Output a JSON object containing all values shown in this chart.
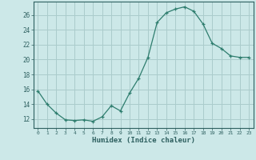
{
  "x": [
    0,
    1,
    2,
    3,
    4,
    5,
    6,
    7,
    8,
    9,
    10,
    11,
    12,
    13,
    14,
    15,
    16,
    17,
    18,
    19,
    20,
    21,
    22,
    23
  ],
  "y": [
    15.8,
    14.0,
    12.8,
    11.9,
    11.8,
    11.9,
    11.7,
    12.3,
    13.8,
    13.1,
    15.5,
    17.5,
    20.3,
    25.0,
    26.3,
    26.8,
    27.1,
    26.5,
    24.8,
    22.2,
    21.5,
    20.5,
    20.3,
    20.3
  ],
  "line_color": "#2e7d6e",
  "marker": "+",
  "marker_color": "#2e7d6e",
  "bg_color": "#cce8e8",
  "grid_color": "#aacccc",
  "xlabel": "Humidex (Indice chaleur)",
  "ylabel_ticks": [
    12,
    14,
    16,
    18,
    20,
    22,
    24,
    26
  ],
  "ylim": [
    10.8,
    27.8
  ],
  "xlim": [
    -0.5,
    23.5
  ],
  "tick_color": "#2e6060",
  "xlabel_color": "#2e6060",
  "axis_color": "#2e6060"
}
